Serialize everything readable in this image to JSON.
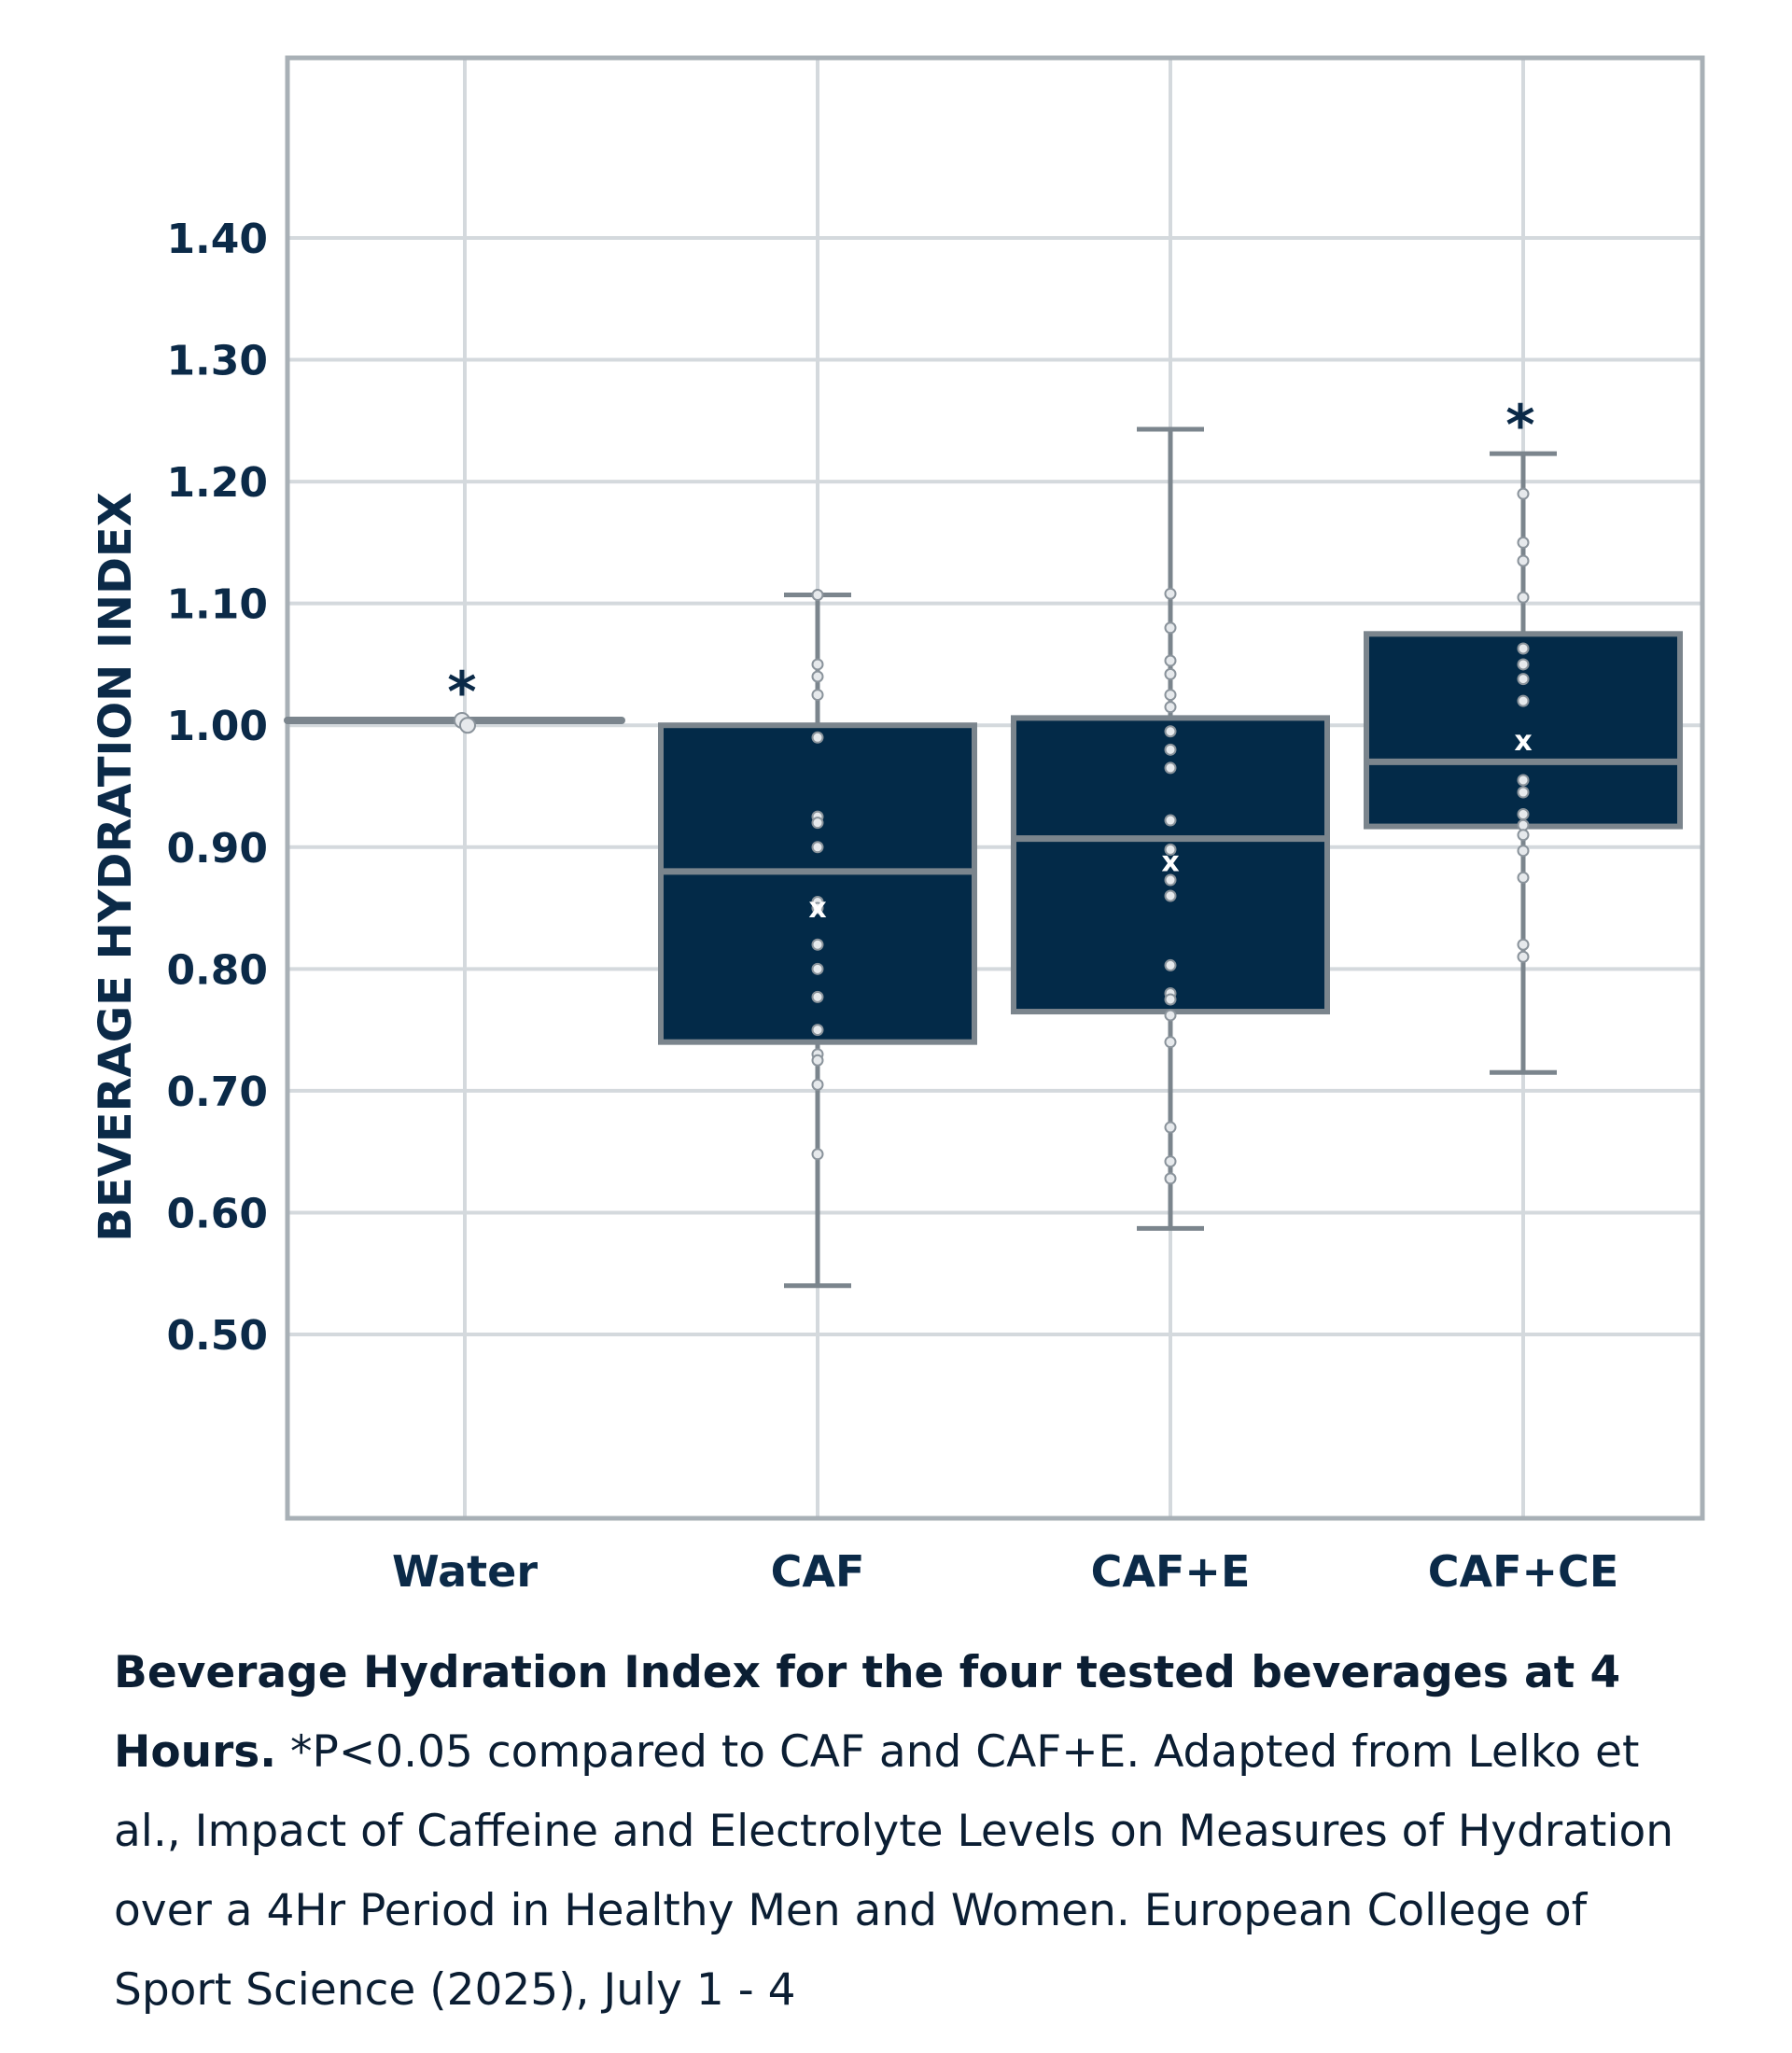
{
  "chart_data": {
    "type": "box",
    "ylabel": "BEVERAGE HYDRATION INDEX",
    "xlabel": "",
    "ylim": [
      0.35,
      1.55
    ],
    "yticks": [
      0.5,
      0.6,
      0.7,
      0.8,
      0.9,
      1.0,
      1.1,
      1.2,
      1.3,
      1.4
    ],
    "ytick_labels": [
      "0.50",
      "0.60",
      "0.70",
      "0.80",
      "0.90",
      "1.00",
      "1.10",
      "1.20",
      "1.30",
      "1.40"
    ],
    "grid": true,
    "categories": [
      "Water",
      "CAF",
      "CAF+E",
      "CAF+CE"
    ],
    "boxes": [
      {
        "name": "Water",
        "min": 1.004,
        "q1": 1.004,
        "median": 1.004,
        "q3": 1.004,
        "max": 1.004,
        "mean": null,
        "points": [
          1.004,
          1.0
        ],
        "significance": "*"
      },
      {
        "name": "CAF",
        "min": 0.54,
        "q1": 0.74,
        "median": 0.88,
        "q3": 1.0,
        "max": 1.107,
        "mean": 0.85,
        "points": [
          1.107,
          1.05,
          1.04,
          1.025,
          0.99,
          0.925,
          0.92,
          0.9,
          0.855,
          0.85,
          0.82,
          0.8,
          0.777,
          0.75,
          0.73,
          0.725,
          0.705,
          0.648
        ],
        "significance": ""
      },
      {
        "name": "CAF+E",
        "min": 0.587,
        "q1": 0.765,
        "median": 0.907,
        "q3": 1.006,
        "max": 1.243,
        "mean": 0.888,
        "points": [
          1.108,
          1.08,
          1.053,
          1.042,
          1.025,
          1.015,
          0.995,
          0.98,
          0.965,
          0.922,
          0.898,
          0.873,
          0.86,
          0.803,
          0.78,
          0.775,
          0.762,
          0.74,
          0.67,
          0.642,
          0.628
        ],
        "significance": ""
      },
      {
        "name": "CAF+CE",
        "min": 0.715,
        "q1": 0.917,
        "median": 0.97,
        "q3": 1.075,
        "max": 1.223,
        "mean": 0.987,
        "points": [
          1.19,
          1.15,
          1.135,
          1.105,
          1.063,
          1.05,
          1.038,
          1.02,
          0.955,
          0.945,
          0.927,
          0.918,
          0.91,
          0.897,
          0.875,
          0.82,
          0.81
        ],
        "significance": "*"
      }
    ],
    "mean_marker": "x",
    "colors": {
      "box_fill": "#032a48",
      "box_stroke": "#7b858d",
      "whisker": "#7b858d",
      "grid": "#d4d9dd",
      "frame": "#a8b0b6",
      "text": "#0b2a48",
      "point_fill": "#e6e9ec",
      "point_stroke": "#8a939b",
      "mean_marker": "#ffffff"
    }
  },
  "caption": {
    "lead": "Beverage Hydration Index for the four tested beverages at 4 Hours.",
    "body": " *P<0.05 compared to CAF and CAF+E. Adapted from Lelko et al., Impact of Caffeine and Electrolyte Levels on Measures of Hydration over a 4Hr Period in Healthy Men and Women. European College of Sport Science (2025), July 1 - 4"
  }
}
